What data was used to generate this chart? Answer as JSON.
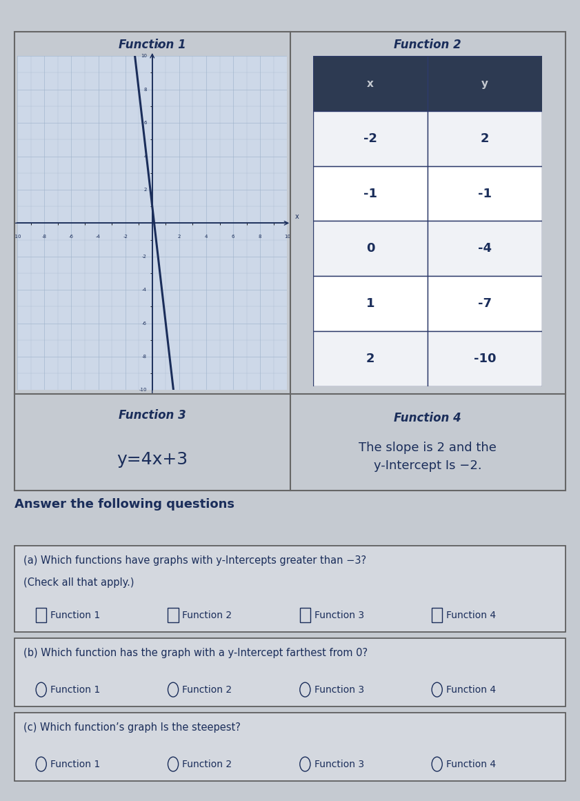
{
  "bg_color": "#c5cad1",
  "title_func1": "Function 1",
  "title_func2": "Function 2",
  "title_func3": "Function 3",
  "title_func4": "Function 4",
  "func3_equation": "y=4x+3",
  "func4_text1": "The slope is 2 and the",
  "func4_text2": "y-Intercept Is −2.",
  "table_header": [
    "x",
    "y"
  ],
  "table_data": [
    [
      "-2",
      "2"
    ],
    [
      "-1",
      "-1"
    ],
    [
      "0",
      "-4"
    ],
    [
      "1",
      "-7"
    ],
    [
      "2",
      "-10"
    ]
  ],
  "table_header_bg": "#2d3a52",
  "table_header_fg": "#c5cad1",
  "table_row_bg1": "#ffffff",
  "table_row_bg2": "#ffffff",
  "table_border": "#2d3a6a",
  "graph_bg": "#cdd8e8",
  "graph_line_color": "#1a2d5a",
  "graph_grid_color": "#a0b4cc",
  "text_color": "#1a2d5a",
  "section_bg": "#c5cad1",
  "question_box_bg": "#d8dce3",
  "question_box_border": "#555555",
  "answer_the_following": "Answer the following questions",
  "qa_label": "(a) Which functions have graphs with y-Intercepts greater than −3?",
  "qa_sub": "(Check all that apply.)",
  "qb_label": "(b) Which function has the graph with a y-Intercept farthest from 0?",
  "qc_label": "(c) Which function’s graph Is the steepest?",
  "slope_func1": -7,
  "intercept_func1": 1
}
